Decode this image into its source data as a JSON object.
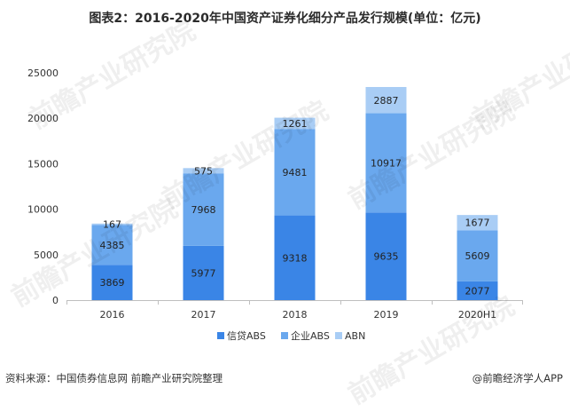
{
  "title": "图表2：2016-2020年中国资产证券化细分产品发行规模(单位：亿元)",
  "footer": {
    "source": "资料来源：中国债券信息网 前瞻产业研究院整理",
    "brand": "@前瞻经济学人APP"
  },
  "watermark": "前瞻产业研究院",
  "colors": {
    "信贷ABS": "#3a85e6",
    "企业ABS": "#6aa8ee",
    "ABN": "#a9cdf5",
    "axis": "#bfbfbf"
  },
  "chart_data": {
    "type": "bar",
    "stacked": true,
    "title": "图表2：2016-2020年中国资产证券化细分产品发行规模(单位：亿元)",
    "categories": [
      "2016",
      "2017",
      "2018",
      "2019",
      "2020H1"
    ],
    "series": [
      {
        "name": "信贷ABS",
        "values": [
          3869,
          5977,
          9318,
          9635,
          2077
        ]
      },
      {
        "name": "企业ABS",
        "values": [
          4385,
          7968,
          9481,
          10917,
          5609
        ]
      },
      {
        "name": "ABN",
        "values": [
          167,
          575,
          1261,
          2887,
          1677
        ]
      }
    ],
    "ylim": [
      0,
      25000
    ],
    "yticks": [
      "0",
      "5000",
      "10000",
      "15000",
      "20000",
      "25000"
    ],
    "xlabel": "",
    "ylabel": "",
    "grid": false,
    "legend": "bottom-center"
  }
}
